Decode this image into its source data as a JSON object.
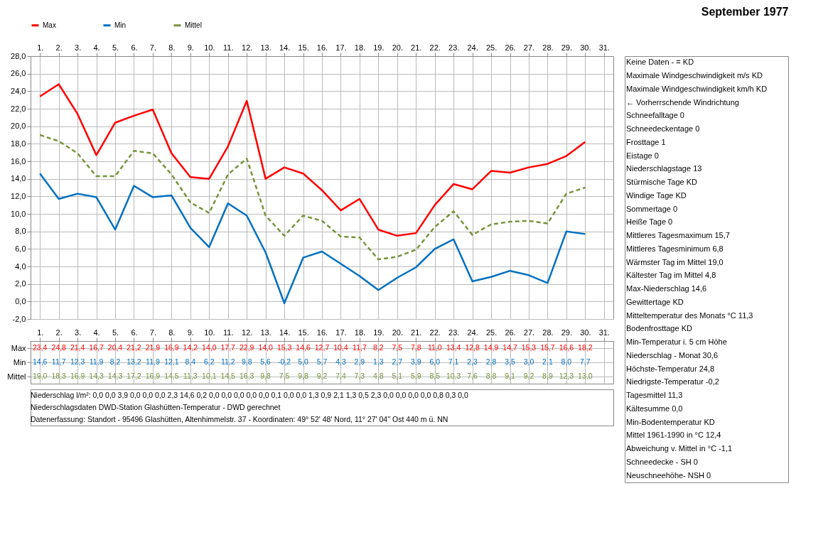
{
  "chart_data": {
    "type": "line",
    "title": "September 1977",
    "categories": [
      "1.",
      "2.",
      "3.",
      "4.",
      "5.",
      "6.",
      "7.",
      "8.",
      "9.",
      "10.",
      "11.",
      "12.",
      "13.",
      "14.",
      "15.",
      "16.",
      "17.",
      "18.",
      "19.",
      "20.",
      "21.",
      "22.",
      "23.",
      "24.",
      "25.",
      "26.",
      "27.",
      "28.",
      "29.",
      "30.",
      "31."
    ],
    "series": [
      {
        "name": "Max",
        "color": "#ff0000",
        "line_style": "solid",
        "value_labels": [
          "23,4",
          "24,8",
          "21,4",
          "16,7",
          "20,4",
          "21,2",
          "21,9",
          "16,9",
          "14,2",
          "14,0",
          "17,7",
          "22,9",
          "14,0",
          "15,3",
          "14,6",
          "12,7",
          "10,4",
          "11,7",
          "8,2",
          "7,5",
          "7,8",
          "11,0",
          "13,4",
          "12,8",
          "14,9",
          "14,7",
          "15,3",
          "15,7",
          "16,6",
          "18,2",
          null
        ],
        "values": [
          23.4,
          24.8,
          21.4,
          16.7,
          20.4,
          21.2,
          21.9,
          16.9,
          14.2,
          14.0,
          17.7,
          22.9,
          14.0,
          15.3,
          14.6,
          12.7,
          10.4,
          11.7,
          8.2,
          7.5,
          7.8,
          11.0,
          13.4,
          12.8,
          14.9,
          14.7,
          15.3,
          15.7,
          16.6,
          18.2,
          null
        ]
      },
      {
        "name": "Min",
        "color": "#0070c0",
        "line_style": "solid",
        "value_labels": [
          "14,6",
          "11,7",
          "12,3",
          "11,9",
          "8,2",
          "13,2",
          "11,9",
          "12,1",
          "8,4",
          "6,2",
          "11,2",
          "9,8",
          "5,6",
          "-0,2",
          "5,0",
          "5,7",
          "4,3",
          "2,9",
          "1,3",
          "2,7",
          "3,9",
          "6,0",
          "7,1",
          "2,3",
          "2,8",
          "3,5",
          "3,0",
          "2,1",
          "8,0",
          "7,7",
          null
        ],
        "values": [
          14.6,
          11.7,
          12.3,
          11.9,
          8.2,
          13.2,
          11.9,
          12.1,
          8.4,
          6.2,
          11.2,
          9.8,
          5.6,
          -0.2,
          5.0,
          5.7,
          4.3,
          2.9,
          1.3,
          2.7,
          3.9,
          6.0,
          7.1,
          2.3,
          2.8,
          3.5,
          3.0,
          2.1,
          8.0,
          7.7,
          null
        ]
      },
      {
        "name": "Mittel",
        "color": "#77933c",
        "line_style": "dashed",
        "value_labels": [
          "19,0",
          "18,3",
          "16,9",
          "14,3",
          "14,3",
          "17,2",
          "16,9",
          "14,5",
          "11,3",
          "10,1",
          "14,5",
          "16,3",
          "9,8",
          "7,5",
          "9,8",
          "9,2",
          "7,4",
          "7,3",
          "4,8",
          "5,1",
          "5,9",
          "8,5",
          "10,3",
          "7,6",
          "8,8",
          "9,1",
          "9,2",
          "8,9",
          "12,3",
          "13,0",
          null
        ],
        "values": [
          19.0,
          18.3,
          16.9,
          14.3,
          14.3,
          17.2,
          16.9,
          14.5,
          11.3,
          10.1,
          14.5,
          16.3,
          9.8,
          7.5,
          9.8,
          9.2,
          7.4,
          7.3,
          4.8,
          5.1,
          5.9,
          8.5,
          10.3,
          7.6,
          8.8,
          9.1,
          9.2,
          8.9,
          12.3,
          13.0,
          null
        ]
      }
    ],
    "ylim": [
      -2,
      28
    ],
    "yticks": [
      {
        "value": -2,
        "label": "-2,0"
      },
      {
        "value": 0,
        "label": "0,0"
      },
      {
        "value": 2,
        "label": "2,0"
      },
      {
        "value": 4,
        "label": "4,0"
      },
      {
        "value": 6,
        "label": "6,0"
      },
      {
        "value": 8,
        "label": "8,0"
      },
      {
        "value": 10,
        "label": "10,0"
      },
      {
        "value": 12,
        "label": "12,0"
      },
      {
        "value": 14,
        "label": "14,0"
      },
      {
        "value": 16,
        "label": "16,0"
      },
      {
        "value": 18,
        "label": "18,0"
      },
      {
        "value": 20,
        "label": "20,0"
      },
      {
        "value": 22,
        "label": "22,0"
      },
      {
        "value": 24,
        "label": "24,0"
      },
      {
        "value": 26,
        "label": "26,0"
      },
      {
        "value": 28,
        "label": "28,0"
      }
    ],
    "grid": true,
    "legend": "top",
    "annotations": [
      "Keine Daten - = KD",
      "Maximale Windgeschwindigkeit m/s KD",
      "Maximale Windgeschwindigkeit km/h KD",
      "← Vorherrschende Windrichtung",
      "Schneefalltage 0",
      "Schneedeckentage 0",
      "Frosttage 1",
      "Eistage 0",
      "Niederschlagstage 13",
      "Stürmische Tage KD",
      "Windige Tage KD",
      "Sommertage 0",
      "Heiße Tage 0",
      "Mittleres Tagesmaximum 15,7",
      "Mittleres Tagesminimum 6,8",
      "Wärmster Tag im Mittel 19,0",
      "Kältester Tag im Mittel 4,8",
      "Max-Niederschlag 14,6",
      "Gewittertage KD",
      "Mitteltemperatur des Monats °C 11,3",
      "Bodenfrosttage KD",
      "Min-Temperatur i. 5 cm Höhe",
      "Niederschlag - Monat 30,6",
      "Höchste-Temperatur 24,8",
      "Niedrigste-Temperatur -0,2",
      "Tagesmittel 11,3",
      "Kältesumme 0,0",
      "Min-Bodentemperatur KD",
      "Mittel 1961-1990 in °C 12,4",
      "Abweichung v. Mittel in °C -1,1",
      "Schneedecke - SH 0",
      "Neuschneehöhe- NSH 0",
      "Niederschlag l/m²: 0,0 0,0 3,9 0,0 0,0 0,0 2,3 14,6 0,2 0,0 0,0 0,0 0,0 0,0 0,1 0,0 0,0 1,3 0,9 2,1 1,3 0,5 2,3 0,0 0,0 0,0 0,0 0,8 0,3 0,0",
      "Niederschlagsdaten DWD-Station Glashütten-Temperatur - DWD gerechnet",
      "Datenerfassung: Standort - 95496 Glashütten, Altenhimmelstr. 37 - Koordinaten: 49° 52' 48' Nord, 11° 27' 04'' Ost 440 m ü. NN"
    ]
  }
}
